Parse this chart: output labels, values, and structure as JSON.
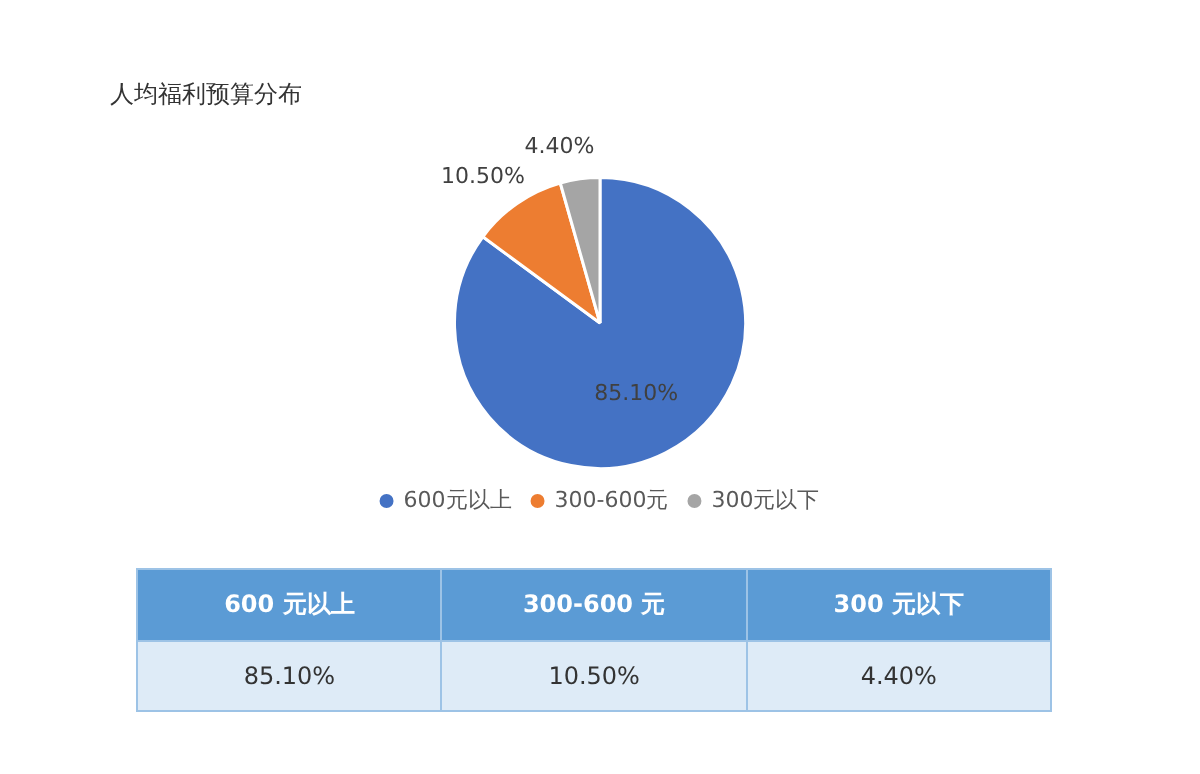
{
  "chart_data": {
    "type": "pie",
    "title": "人均福利预算分布",
    "categories": [
      "600元以上",
      "300-600元",
      "300元以下"
    ],
    "values": [
      85.1,
      10.5,
      4.4
    ],
    "value_labels": [
      "85.10%",
      "10.50%",
      "4.40%"
    ],
    "colors": [
      "#4472c4",
      "#ed7d31",
      "#a5a5a5"
    ],
    "legend": "bottom",
    "annotations": [
      "600 元以上",
      "300-600 元",
      "300 元以下"
    ]
  }
}
